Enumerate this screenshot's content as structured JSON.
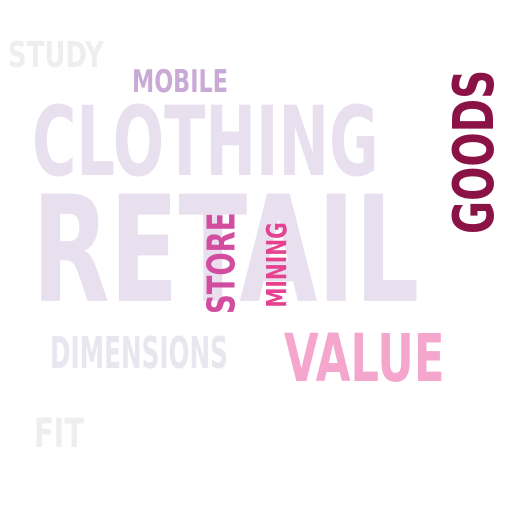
{
  "word_cloud": {
    "words": [
      {
        "text": "STUDY",
        "color": "#eeeef0"
      },
      {
        "text": "MOBILE",
        "color": "#c9a9d6"
      },
      {
        "text": "CLOTHING",
        "color": "#e8e0ee"
      },
      {
        "text": "RETAIL",
        "color": "#e8e0ee"
      },
      {
        "text": "GOODS",
        "color": "#8a1245"
      },
      {
        "text": "STORE",
        "color": "#d24da0"
      },
      {
        "text": "MINING",
        "color": "#e6428f"
      },
      {
        "text": "DIMENSIONS",
        "color": "#e8e6ee"
      },
      {
        "text": "VALUE",
        "color": "#f4a6cc"
      },
      {
        "text": "FIT",
        "color": "#eeeef0"
      }
    ]
  }
}
